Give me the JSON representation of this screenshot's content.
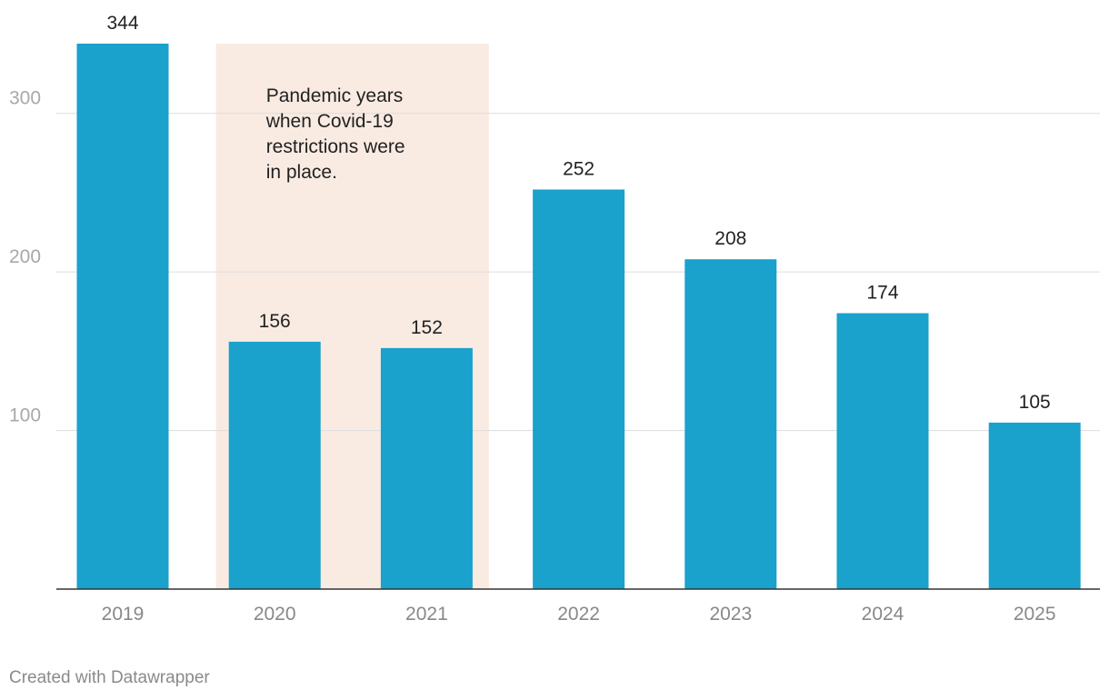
{
  "chart_data": {
    "type": "bar",
    "categories": [
      "2019",
      "2020",
      "2021",
      "2022",
      "2023",
      "2024",
      "2025"
    ],
    "values": [
      344,
      156,
      152,
      252,
      208,
      174,
      105
    ],
    "title": "",
    "xlabel": "",
    "ylabel": "",
    "ylim": [
      0,
      344
    ],
    "yticks": [
      100,
      200,
      300
    ],
    "grid": true,
    "highlight": {
      "from_category": "2020",
      "to_category": "2021",
      "label_lines": [
        "Pandemic years",
        "when Covid-19",
        "restrictions were",
        "in place."
      ]
    }
  },
  "colors": {
    "bar": "#1aa1cc",
    "highlight": "#f9ebe2",
    "grid": "#dddddd",
    "baseline": "#333333"
  },
  "footer": {
    "credit": "Created with Datawrapper"
  }
}
